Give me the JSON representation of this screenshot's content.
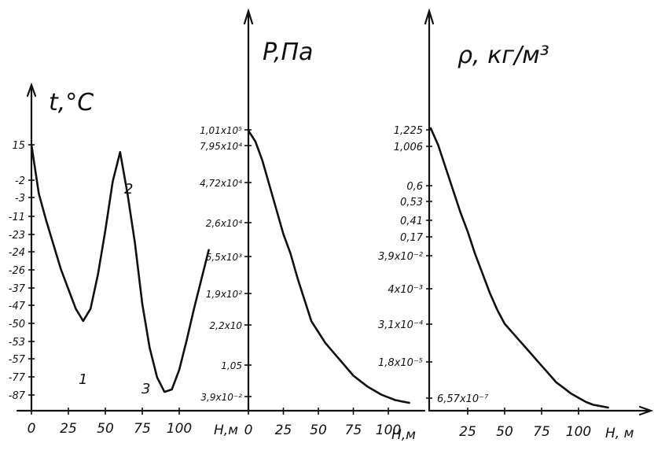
{
  "chart_data": [
    {
      "type": "line",
      "panel": "temperature",
      "ylabel": "t,°C",
      "xlabel": "H,м",
      "x_ticks": [
        "0",
        "25",
        "50",
        "75",
        "100"
      ],
      "y_ticks": [
        "15",
        "-2",
        "-3",
        "-11",
        "-23",
        "-24",
        "-26",
        "-37",
        "-47",
        "-50",
        "-53",
        "-57",
        "-77",
        "-87"
      ],
      "annotations": [
        "1",
        "2",
        "3"
      ],
      "x": [
        0,
        5,
        10,
        15,
        20,
        25,
        30,
        35,
        40,
        45,
        50,
        55,
        60,
        65,
        70,
        75,
        80,
        85,
        90,
        95,
        100,
        105,
        110,
        115,
        120
      ],
      "y": [
        15,
        -5,
        -16,
        -26,
        -36,
        -44,
        -52,
        -57,
        -52,
        -38,
        -20,
        0,
        12,
        -5,
        -25,
        -50,
        -68,
        -80,
        -86,
        -85,
        -77,
        -65,
        -52,
        -40,
        -28
      ]
    },
    {
      "type": "line",
      "panel": "pressure",
      "ylabel": "P,Па",
      "xlabel": "H,м",
      "x_ticks": [
        "0",
        "25",
        "50",
        "75",
        "100"
      ],
      "y_ticks": [
        "1,01x10⁵",
        "7,95x10⁴",
        "4,72x10⁴",
        "2,6x10⁴",
        "5,5x10³",
        "1,9x10²",
        "2,2x10",
        "1,05",
        "3,9x10⁻²"
      ],
      "x": [
        0,
        5,
        10,
        15,
        20,
        25,
        30,
        35,
        40,
        45,
        50,
        55,
        60,
        65,
        70,
        75,
        80,
        85,
        90,
        95,
        100,
        105,
        110,
        115
      ],
      "y": [
        100,
        96,
        89,
        80,
        71,
        62,
        55,
        46,
        38,
        30,
        26,
        22,
        19,
        16,
        13,
        10,
        8,
        6,
        4.5,
        3,
        2,
        1,
        0.5,
        0
      ]
    },
    {
      "type": "line",
      "panel": "density",
      "ylabel": "ρ, кг/м³",
      "xlabel": "H, м",
      "x_ticks": [
        "25",
        "50",
        "75",
        "100"
      ],
      "y_ticks": [
        "1,225",
        "1,006",
        "0,6",
        "0,53",
        "0,41",
        "0,17",
        "3,9x10⁻²",
        "4x10⁻³",
        "3,1x10⁻⁴",
        "1,8x10⁻⁵",
        "6,57x10⁻⁷"
      ],
      "x": [
        0,
        5,
        10,
        15,
        20,
        25,
        30,
        35,
        40,
        45,
        50,
        55,
        60,
        65,
        70,
        75,
        80,
        85,
        90,
        95,
        100,
        105,
        110,
        115,
        120
      ],
      "y": [
        100,
        94,
        86,
        78,
        70,
        63,
        55,
        48,
        41,
        35,
        30,
        27,
        24,
        21,
        18,
        15,
        12,
        9,
        7,
        5,
        3.5,
        2,
        1,
        0.5,
        0
      ]
    }
  ]
}
